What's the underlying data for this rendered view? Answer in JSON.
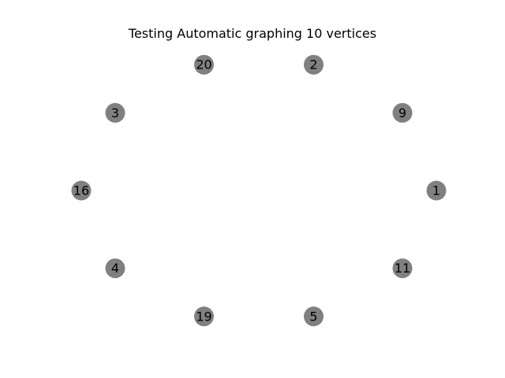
{
  "title": "Testing Automatic graphing 10 vertices",
  "colors": {
    "node_fill": "#808080",
    "label": "#000000",
    "background": "#ffffff"
  },
  "graph": {
    "layout": "circular",
    "vertices": [
      "1",
      "9",
      "2",
      "20",
      "3",
      "16",
      "4",
      "19",
      "5",
      "11"
    ],
    "edges": []
  }
}
